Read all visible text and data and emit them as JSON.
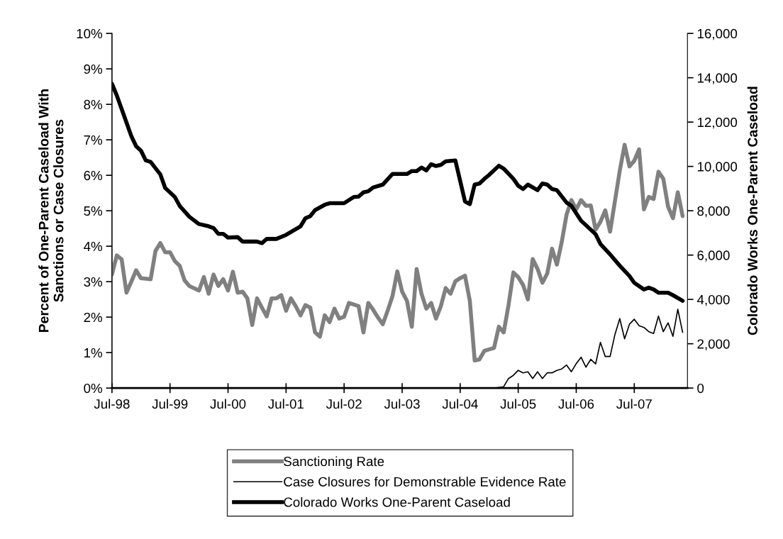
{
  "chart_data": {
    "type": "line",
    "ylabel": "Percent of One-Parent Caseload With\nSanctions or Case Closures",
    "y2label": "Colorado Works One-Parent Caseload",
    "xlim": [
      "1998-07",
      "2008-06"
    ],
    "xticks": [
      {
        "value": "1998-07",
        "label": "Jul-98"
      },
      {
        "value": "1999-07",
        "label": "Jul-99"
      },
      {
        "value": "2000-07",
        "label": "Jul-00"
      },
      {
        "value": "2001-07",
        "label": "Jul-01"
      },
      {
        "value": "2002-07",
        "label": "Jul-02"
      },
      {
        "value": "2003-07",
        "label": "Jul-03"
      },
      {
        "value": "2004-07",
        "label": "Jul-04"
      },
      {
        "value": "2005-07",
        "label": "Jul-05"
      },
      {
        "value": "2006-07",
        "label": "Jul-06"
      },
      {
        "value": "2007-07",
        "label": "Jul-07"
      }
    ],
    "ylim": [
      0,
      10
    ],
    "yticks": [
      {
        "value": 0,
        "label": "0%"
      },
      {
        "value": 1,
        "label": "1%"
      },
      {
        "value": 2,
        "label": "2%"
      },
      {
        "value": 3,
        "label": "3%"
      },
      {
        "value": 4,
        "label": "4%"
      },
      {
        "value": 5,
        "label": "5%"
      },
      {
        "value": 6,
        "label": "6%"
      },
      {
        "value": 7,
        "label": "7%"
      },
      {
        "value": 8,
        "label": "8%"
      },
      {
        "value": 9,
        "label": "9%"
      },
      {
        "value": 10,
        "label": "10%"
      }
    ],
    "y2lim": [
      0,
      16000
    ],
    "y2ticks": [
      0,
      {
        "value": 2000,
        "label": "2,000"
      },
      {
        "value": 4000,
        "label": "4,000"
      },
      {
        "value": 6000,
        "label": "6,000"
      },
      {
        "value": 8000,
        "label": "8,000"
      },
      {
        "value": 10000,
        "label": "10,000"
      },
      {
        "value": 12000,
        "label": "12,000"
      },
      {
        "value": 14000,
        "label": "14,000"
      },
      {
        "value": 16000,
        "label": "16,000"
      }
    ],
    "legend": "bottom",
    "marker": "none",
    "series": [
      {
        "name": "Sanctioning Rate",
        "color": "#808080",
        "x": [
          "1998-07",
          "1998-08",
          "1998-09",
          "1998-10",
          "1998-11",
          "1998-12",
          "1999-01",
          "1999-03",
          "1999-04",
          "1999-05",
          "1999-06",
          "1999-07",
          "1999-08",
          "1999-09",
          "1999-10",
          "1999-11",
          "2000-01",
          "2000-02",
          "2000-03",
          "2000-04",
          "2000-05",
          "2000-06",
          "2000-07",
          "2000-08",
          "2000-09",
          "2000-10",
          "2000-11",
          "2000-12",
          "2001-01",
          "2001-02",
          "2001-03",
          "2001-04",
          "2001-05",
          "2001-06",
          "2001-07",
          "2001-08",
          "2001-09",
          "2001-10",
          "2001-11",
          "2001-12",
          "2002-01",
          "2002-02",
          "2002-03",
          "2002-04",
          "2002-05",
          "2002-06",
          "2002-07",
          "2002-08",
          "2002-10",
          "2002-11",
          "2002-12",
          "2003-01",
          "2003-02",
          "2003-03",
          "2003-04",
          "2003-05",
          "2003-06",
          "2003-07",
          "2003-08",
          "2003-09",
          "2003-10",
          "2003-11",
          "2003-12",
          "2004-01",
          "2004-02",
          "2004-03",
          "2004-04",
          "2004-05",
          "2004-06",
          "2004-07",
          "2004-08",
          "2004-09",
          "2004-10",
          "2004-11",
          "2004-12",
          "2005-02",
          "2005-03",
          "2005-04",
          "2005-05",
          "2005-06",
          "2005-07",
          "2005-08",
          "2005-09",
          "2005-10",
          "2005-11",
          "2005-12",
          "2006-01",
          "2006-02",
          "2006-03",
          "2006-04",
          "2006-05",
          "2006-06",
          "2006-07",
          "2006-08",
          "2006-09",
          "2006-10",
          "2006-11",
          "2006-12",
          "2007-01",
          "2007-02",
          "2007-03",
          "2007-04",
          "2007-05",
          "2007-06",
          "2007-07",
          "2007-08",
          "2007-09",
          "2007-10",
          "2007-11",
          "2007-12",
          "2008-01",
          "2008-02",
          "2008-03",
          "2008-04",
          "2008-05"
        ],
        "values": [
          3.2,
          3.74,
          3.63,
          2.69,
          3.0,
          3.32,
          3.1,
          3.07,
          3.87,
          4.09,
          3.83,
          3.83,
          3.58,
          3.45,
          3.04,
          2.88,
          2.75,
          3.13,
          2.66,
          3.2,
          2.88,
          3.07,
          2.75,
          3.28,
          2.69,
          2.72,
          2.53,
          1.78,
          2.53,
          2.27,
          2.02,
          2.53,
          2.53,
          2.62,
          2.18,
          2.53,
          2.31,
          2.05,
          2.34,
          2.27,
          1.57,
          1.45,
          2.05,
          1.86,
          2.24,
          1.96,
          2.01,
          2.4,
          2.31,
          1.57,
          2.4,
          2.21,
          1.99,
          1.8,
          2.18,
          2.59,
          3.29,
          2.72,
          2.46,
          1.73,
          3.36,
          2.66,
          2.24,
          2.4,
          1.96,
          2.31,
          2.82,
          2.66,
          3.01,
          3.1,
          3.17,
          2.46,
          0.78,
          0.81,
          1.05,
          1.13,
          1.73,
          1.57,
          2.34,
          3.26,
          3.13,
          2.91,
          2.5,
          3.64,
          3.36,
          2.97,
          3.23,
          3.93,
          3.48,
          4.12,
          4.89,
          5.3,
          5.04,
          5.3,
          5.14,
          5.15,
          4.47,
          4.69,
          5.01,
          4.41,
          5.27,
          6.13,
          6.86,
          6.25,
          6.41,
          6.73,
          5.04,
          5.39,
          5.33,
          6.1,
          5.9,
          5.11,
          4.79,
          5.52,
          4.85
        ]
      },
      {
        "name": "Case Closures for Demonstrable Evidence Rate",
        "color": "#000000",
        "x": [
          "2005-01",
          "2005-02",
          "2005-04",
          "2005-05",
          "2005-06",
          "2005-07",
          "2005-08",
          "2005-09",
          "2005-10",
          "2005-11",
          "2005-12",
          "2006-01",
          "2006-02",
          "2006-03",
          "2006-04",
          "2006-05",
          "2006-06",
          "2006-07",
          "2006-08",
          "2006-09",
          "2006-10",
          "2006-11",
          "2006-12",
          "2007-01",
          "2007-02",
          "2007-03",
          "2007-04",
          "2007-05",
          "2007-06",
          "2007-07",
          "2007-08",
          "2007-09",
          "2007-10",
          "2007-11",
          "2007-12",
          "2008-01",
          "2008-02",
          "2008-03",
          "2008-04",
          "2008-05"
        ],
        "values": [
          0,
          0,
          0.04,
          0.27,
          0.36,
          0.5,
          0.43,
          0.46,
          0.27,
          0.46,
          0.27,
          0.43,
          0.43,
          0.5,
          0.54,
          0.65,
          0.46,
          0.69,
          0.87,
          0.59,
          0.81,
          0.68,
          1.29,
          0.89,
          0.89,
          1.51,
          1.96,
          1.39,
          1.8,
          1.94,
          1.76,
          1.71,
          1.59,
          1.54,
          2.03,
          1.59,
          1.84,
          1.46,
          2.22,
          1.57
        ]
      },
      {
        "name": "Colorado Works One-Parent Caseload",
        "color": "#000000",
        "axis": "y2",
        "x": [
          "1998-07",
          "1998-08",
          "1998-10",
          "1998-11",
          "1998-12",
          "1999-01",
          "1999-02",
          "1999-03",
          "1999-05",
          "1999-06",
          "1999-08",
          "1999-09",
          "1999-11",
          "2000-01",
          "2000-03",
          "2000-04",
          "2000-05",
          "2000-06",
          "2000-07",
          "2000-09",
          "2000-10",
          "2001-01",
          "2001-02",
          "2001-03",
          "2001-05",
          "2001-07",
          "2001-10",
          "2001-11",
          "2001-12",
          "2002-01",
          "2002-03",
          "2002-04",
          "2002-07",
          "2002-09",
          "2002-10",
          "2002-11",
          "2002-12",
          "2003-01",
          "2003-03",
          "2003-05",
          "2003-08",
          "2003-09",
          "2003-10",
          "2003-11",
          "2003-12",
          "2004-01",
          "2004-02",
          "2004-03",
          "2004-04",
          "2004-06",
          "2004-08",
          "2004-09",
          "2004-10",
          "2004-11",
          "2004-12",
          "2005-01",
          "2005-03",
          "2005-04",
          "2005-06",
          "2005-07",
          "2005-08",
          "2005-09",
          "2005-11",
          "2005-12",
          "2006-01",
          "2006-02",
          "2006-03",
          "2006-05",
          "2006-06",
          "2006-08",
          "2006-09",
          "2006-11",
          "2006-12",
          "2007-02",
          "2007-04",
          "2007-06",
          "2007-07",
          "2007-09",
          "2007-10",
          "2007-11",
          "2007-12",
          "2008-02",
          "2008-03",
          "2008-05"
        ],
        "values": [
          13730,
          13200,
          11980,
          11370,
          10910,
          10710,
          10270,
          10200,
          9640,
          9030,
          8620,
          8220,
          7730,
          7400,
          7300,
          7220,
          6960,
          6960,
          6790,
          6810,
          6610,
          6610,
          6540,
          6730,
          6730,
          6910,
          7300,
          7660,
          7760,
          8030,
          8270,
          8340,
          8340,
          8620,
          8640,
          8830,
          8880,
          9050,
          9180,
          9660,
          9660,
          9790,
          9790,
          9950,
          9820,
          10100,
          10020,
          10070,
          10230,
          10270,
          8420,
          8300,
          9180,
          9230,
          9440,
          9620,
          10030,
          9900,
          9440,
          9130,
          8980,
          9180,
          8930,
          9230,
          9180,
          8980,
          8930,
          8370,
          8220,
          7550,
          7350,
          6940,
          6500,
          6030,
          5520,
          5060,
          4750,
          4450,
          4530,
          4450,
          4300,
          4300,
          4190,
          3940
        ]
      }
    ]
  }
}
